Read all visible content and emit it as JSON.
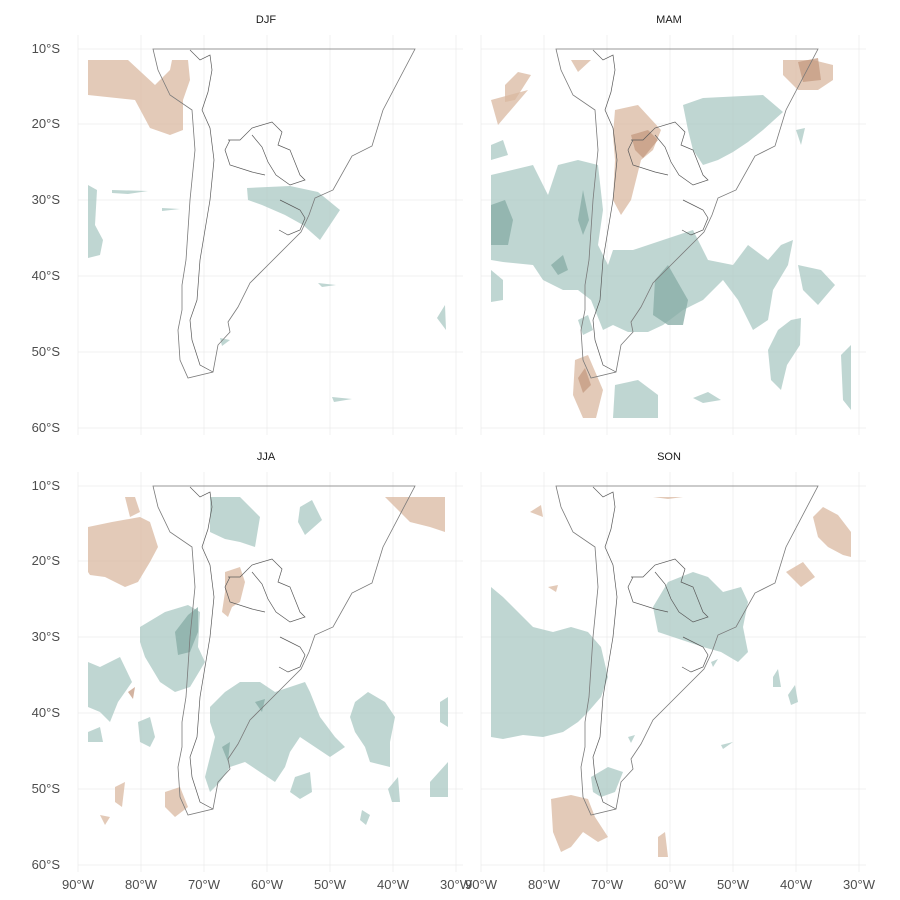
{
  "colors": {
    "positive": "#d9b8a0",
    "positive_strong": "#c49a80",
    "negative": "#a9c8c3",
    "negative_strong": "#86aba4",
    "coastline": "#7a7a7a",
    "grid": "#ebebeb"
  },
  "axes": {
    "lon_ticks": [
      "90°W",
      "80°W",
      "70°W",
      "60°W",
      "50°W",
      "40°W",
      "30°W"
    ],
    "lat_ticks": [
      "10°S",
      "20°S",
      "30°S",
      "40°S",
      "50°S",
      "60°S"
    ]
  },
  "panels": [
    {
      "title": "DJF"
    },
    {
      "title": "MAM"
    },
    {
      "title": "JJA"
    },
    {
      "title": "SON"
    }
  ]
}
